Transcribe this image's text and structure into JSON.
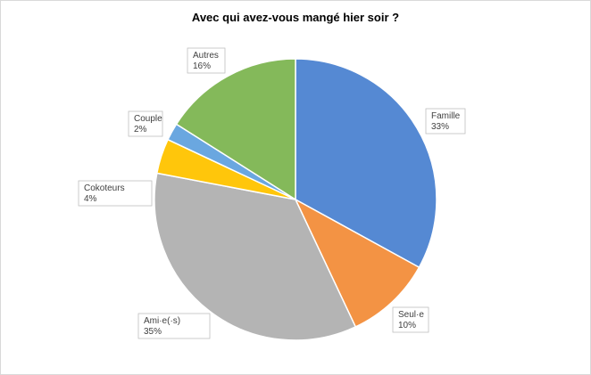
{
  "chart_data": {
    "type": "pie",
    "title": "Avec qui avez-vous mangé hier soir ?",
    "categories": [
      "Famille",
      "Seul·e",
      "Ami·e(·s)",
      "Cokoteurs",
      "Couple",
      "Autres"
    ],
    "values": [
      33,
      10,
      35,
      4,
      2,
      16
    ],
    "value_labels": [
      "33%",
      "10%",
      "35%",
      "4%",
      "2%",
      "16%"
    ],
    "colors": [
      "#5589d3",
      "#f39344",
      "#b4b4b4",
      "#ffc60b",
      "#6aa7e0",
      "#84b95a"
    ]
  }
}
